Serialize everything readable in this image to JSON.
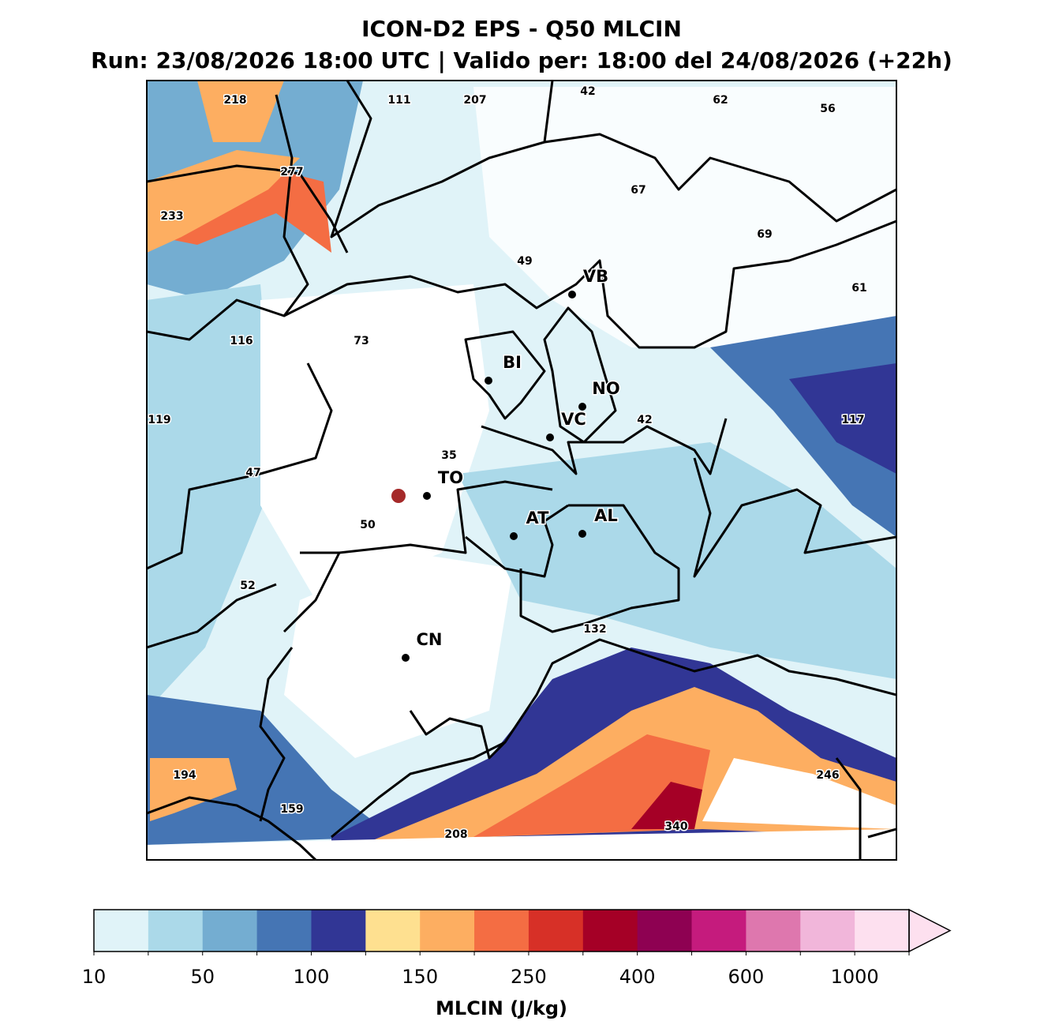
{
  "title": "ICON-D2 EPS - Q50 MLCIN",
  "subtitle": "Run: 23/08/2026 18:00 UTC | Valido per: 18:00 del 24/08/2026 (+22h)",
  "values": [
    218,
    111,
    207,
    42,
    62,
    56,
    277,
    67,
    233,
    69,
    49,
    61,
    116,
    73,
    119,
    117,
    42,
    35,
    47,
    50,
    52,
    132,
    194,
    246,
    159,
    208,
    340
  ],
  "cities": [
    "VB",
    "BI",
    "NO",
    "VC",
    "TO",
    "AT",
    "AL",
    "CN"
  ],
  "colorbar": {
    "label": "MLCIN (J/kg)",
    "ticks": [
      10,
      50,
      100,
      150,
      250,
      400,
      600,
      1000
    ],
    "colors": [
      "#e0f3f8",
      "#abd9e9",
      "#74add1",
      "#4575b4",
      "#313695",
      "#fee090",
      "#fdae61",
      "#f46d43",
      "#d73027",
      "#a50026",
      "#8e0152",
      "#c51b7d",
      "#de77ae",
      "#f1b6da",
      "#fde0ef"
    ]
  }
}
